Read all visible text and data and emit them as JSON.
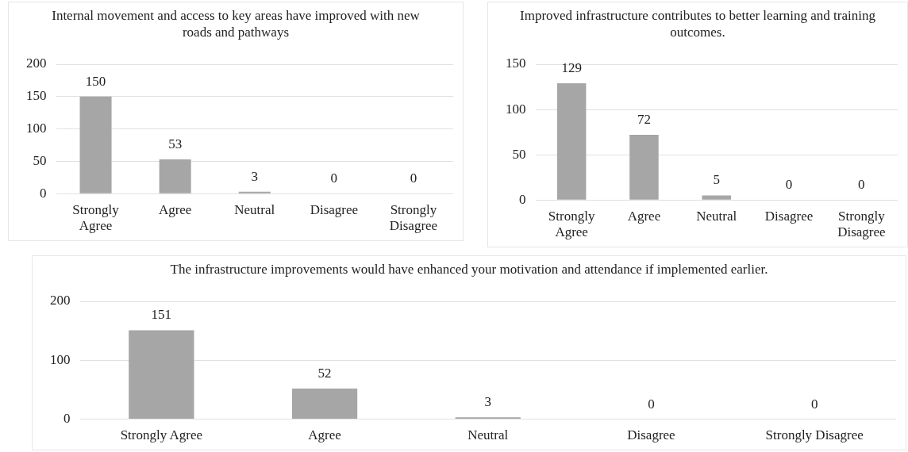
{
  "chart_data": [
    {
      "type": "bar",
      "title": "Internal movement and access to key areas have improved with new roads and pathways",
      "categories": [
        "Strongly Agree",
        "Agree",
        "Neutral",
        "Disagree",
        "Strongly Disagree"
      ],
      "values": [
        150,
        53,
        3,
        0,
        0
      ],
      "color": "#a6a6a6",
      "ylim": [
        0,
        200
      ],
      "yticks": [
        0,
        50,
        100,
        150,
        200
      ],
      "grid": "y",
      "data_labels": true
    },
    {
      "type": "bar",
      "title": "Improved infrastructure contributes to better learning and training outcomes.",
      "categories": [
        "Strongly Agree",
        "Agree",
        "Neutral",
        "Disagree",
        "Strongly Disagree"
      ],
      "values": [
        129,
        72,
        5,
        0,
        0
      ],
      "color": "#a6a6a6",
      "ylim": [
        0,
        150
      ],
      "yticks": [
        0,
        50,
        100,
        150
      ],
      "grid": "y",
      "data_labels": true
    },
    {
      "type": "bar",
      "title": "The infrastructure improvements would have enhanced your motivation and attendance if implemented earlier.",
      "categories": [
        "Strongly Agree",
        "Agree",
        "Neutral",
        "Disagree",
        "Strongly Disagree"
      ],
      "values": [
        151,
        52,
        3,
        0,
        0
      ],
      "color": "#a6a6a6",
      "ylim": [
        0,
        200
      ],
      "yticks": [
        0,
        100,
        200
      ],
      "grid": "y",
      "data_labels": true
    }
  ]
}
